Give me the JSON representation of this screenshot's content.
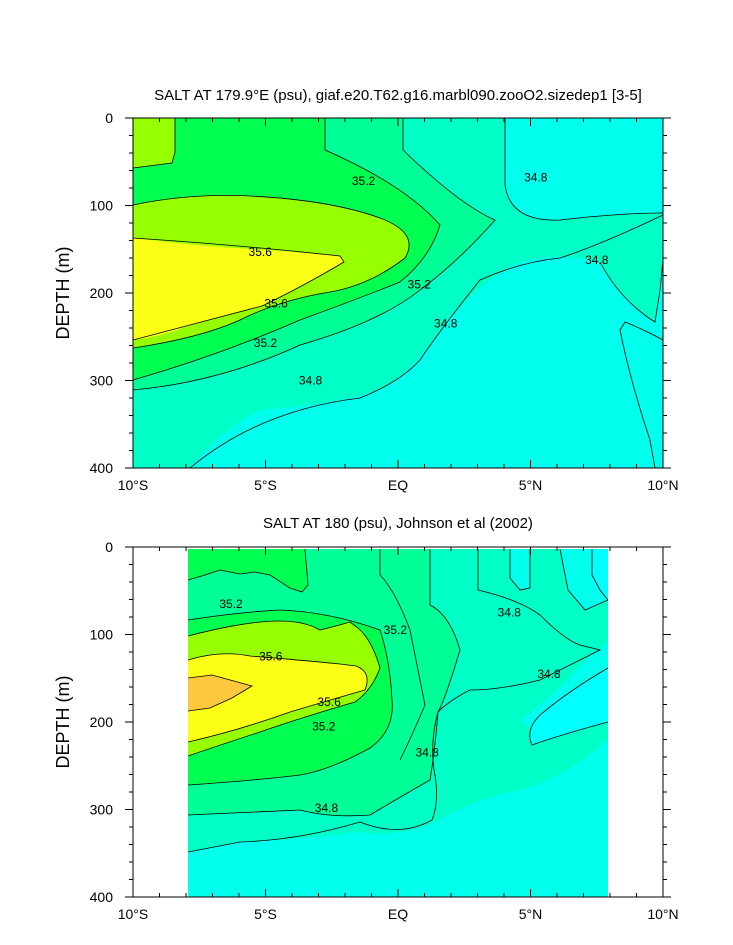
{
  "colors": {
    "s34_8_lo": "#00ffec",
    "s34_8_mid": "#00ffc6",
    "s35_0": "#00ff96",
    "s35_2": "#00ff50",
    "s35_4": "#96ff00",
    "s35_6": "#fbff16",
    "s35_8": "#ffc83c",
    "cyan_deep": "#00ffff"
  },
  "chart_data": [
    {
      "type": "heatmap",
      "subtype": "contour",
      "title": "SALT AT 179.9°E (psu), giaf.e20.T62.g16.marbl090.zooO2.sizedep1 [3-5]",
      "xlabel": "",
      "ylabel": "DEPTH (m)",
      "xlim": [
        -10,
        10
      ],
      "ylim": [
        400,
        0
      ],
      "x_tick_labels": [
        "10°S",
        "5°S",
        "EQ",
        "5°N",
        "10°N"
      ],
      "x_ticks": [
        -10,
        -5,
        0,
        5,
        10
      ],
      "y_tick_labels": [
        "0",
        "100",
        "200",
        "300",
        "400"
      ],
      "y_ticks": [
        0,
        100,
        200,
        300,
        400
      ],
      "contour_labels": [
        {
          "text": "35.2",
          "lat": -1.3,
          "depth": 72
        },
        {
          "text": "34.8",
          "lat": 5.2,
          "depth": 68
        },
        {
          "text": "35.6",
          "lat": -5.2,
          "depth": 153
        },
        {
          "text": "34.8",
          "lat": 7.5,
          "depth": 162
        },
        {
          "text": "35.2",
          "lat": 0.8,
          "depth": 190
        },
        {
          "text": "35.6",
          "lat": -4.6,
          "depth": 212
        },
        {
          "text": "34.8",
          "lat": 1.8,
          "depth": 235
        },
        {
          "text": "35.2",
          "lat": -5.0,
          "depth": 257
        },
        {
          "text": "34.8",
          "lat": -3.3,
          "depth": 300
        }
      ]
    },
    {
      "type": "heatmap",
      "subtype": "contour",
      "title": "SALT AT 180 (psu), Johnson et al (2002)",
      "xlabel": "",
      "ylabel": "DEPTH (m)",
      "xlim": [
        -10,
        10
      ],
      "ylim": [
        400,
        0
      ],
      "data_lat_range": [
        -8,
        8
      ],
      "x_tick_labels": [
        "10°S",
        "5°S",
        "EQ",
        "5°N",
        "10°N"
      ],
      "x_ticks": [
        -10,
        -5,
        0,
        5,
        10
      ],
      "y_tick_labels": [
        "0",
        "100",
        "200",
        "300",
        "400"
      ],
      "y_ticks": [
        0,
        100,
        200,
        300,
        400
      ],
      "contour_labels": [
        {
          "text": "35.2",
          "lat": -6.3,
          "depth": 65
        },
        {
          "text": "35.2",
          "lat": -0.1,
          "depth": 95
        },
        {
          "text": "34.8",
          "lat": 4.2,
          "depth": 75
        },
        {
          "text": "35.6",
          "lat": -4.8,
          "depth": 125
        },
        {
          "text": "34.8",
          "lat": 5.7,
          "depth": 145
        },
        {
          "text": "35.6",
          "lat": -2.6,
          "depth": 177
        },
        {
          "text": "35.2",
          "lat": -2.8,
          "depth": 205
        },
        {
          "text": "34.8",
          "lat": 1.1,
          "depth": 235
        },
        {
          "text": "34.8",
          "lat": -2.7,
          "depth": 298
        }
      ]
    }
  ]
}
